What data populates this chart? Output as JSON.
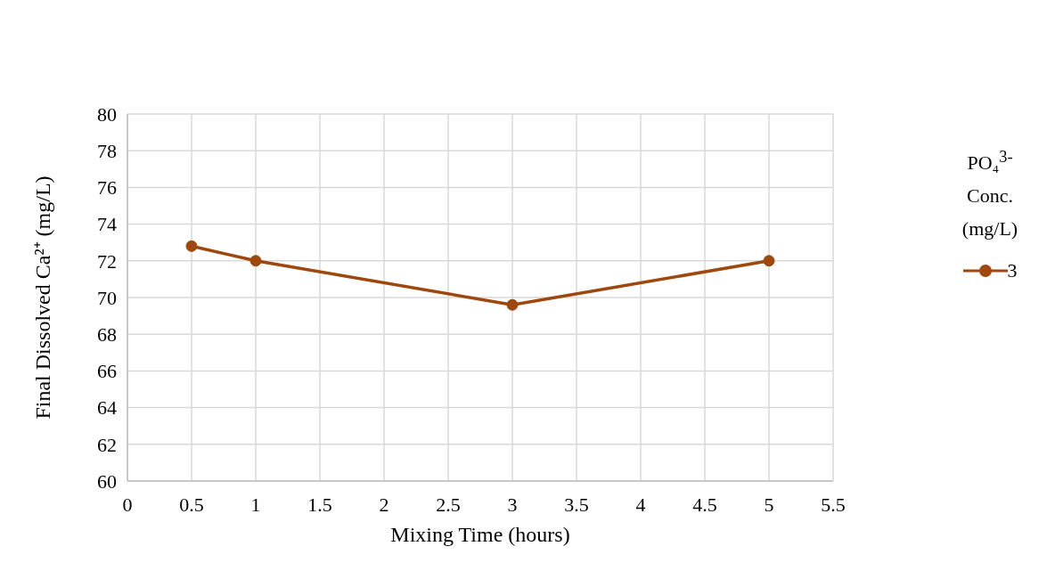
{
  "chart_data": {
    "type": "line",
    "xlabel": "Mixing Time (hours)",
    "ylabel": "Final Dissolved Ca²⁺  (mg/L)",
    "legend_title": "PO₄$^{3-}$ Conc. (mg/L)",
    "x": [
      0.5,
      1,
      3,
      5
    ],
    "series": [
      {
        "name": "3",
        "color": "#9e480e",
        "values": [
          72.8,
          72,
          69.6,
          72
        ]
      }
    ],
    "xlim": [
      0,
      5.5
    ],
    "xticks": [
      0,
      0.5,
      1,
      1.5,
      2,
      2.5,
      3,
      3.5,
      4,
      4.5,
      5,
      5.5
    ],
    "ylim": [
      60,
      80
    ],
    "yticks": [
      60,
      62,
      64,
      66,
      68,
      70,
      72,
      74,
      76,
      78,
      80
    ],
    "grid": true,
    "legend": "right",
    "marker": "circle",
    "line_style": "solid"
  }
}
